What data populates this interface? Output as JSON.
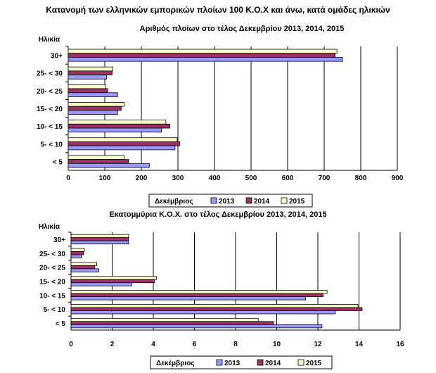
{
  "main_title": "Κατανομή των ελληνικών εμπορικών πλοίων 100 Κ.Ο.Χ και άνω, κατά ομάδες ηλικιών",
  "colors": {
    "2013": "#9999ff",
    "2014": "#993366",
    "2015": "#ffffcc"
  },
  "chart_data": [
    {
      "type": "bar",
      "orientation": "horizontal",
      "title": "Αριθμός πλοίων στο τέλος Δεκεμβρίου 2013, 2014, 2015",
      "ylabel": "Ηλικία",
      "legend_title": "Δεκέμβριος",
      "legend_position": "bottom",
      "grid": true,
      "categories": [
        "30+",
        "25- < 30",
        "20- < 25",
        "15- < 20",
        "10- < 15",
        "5- < 10",
        "< 5"
      ],
      "xlim": [
        0,
        900
      ],
      "xticks": [
        "0",
        "100",
        "200",
        "300",
        "400",
        "500",
        "600",
        "700",
        "800",
        "900"
      ],
      "series": [
        {
          "name": "2013",
          "values": [
            750,
            105,
            135,
            135,
            255,
            292,
            222
          ]
        },
        {
          "name": "2014",
          "values": [
            730,
            120,
            108,
            145,
            278,
            305,
            165
          ]
        },
        {
          "name": "2015",
          "values": [
            735,
            122,
            102,
            153,
            267,
            298,
            153
          ]
        }
      ]
    },
    {
      "type": "bar",
      "orientation": "horizontal",
      "title": "Εκατομμύρια Κ.Ο.Χ. στο τέλος Δεκεμβρίου 2013, 2014, 2015",
      "ylabel": "Ηλικία",
      "legend_title": "Δεκέμβριος",
      "legend_position": "bottom",
      "grid": true,
      "categories": [
        "30+",
        "25- < 30",
        "20- < 25",
        "15- < 20",
        "10- < 15",
        "5- < 10",
        "< 5"
      ],
      "xlim": [
        0,
        16
      ],
      "xticks": [
        "0",
        "2",
        "4",
        "6",
        "8",
        "10",
        "12",
        "14",
        "16"
      ],
      "series": [
        {
          "name": "2013",
          "values": [
            2.8,
            0.5,
            1.35,
            2.95,
            11.4,
            12.85,
            12.2
          ]
        },
        {
          "name": "2014",
          "values": [
            2.8,
            0.6,
            1.15,
            4.05,
            12.25,
            14.15,
            9.85
          ]
        },
        {
          "name": "2015",
          "values": [
            2.8,
            0.65,
            1.25,
            4.15,
            12.45,
            13.95,
            9.1
          ]
        }
      ]
    }
  ]
}
